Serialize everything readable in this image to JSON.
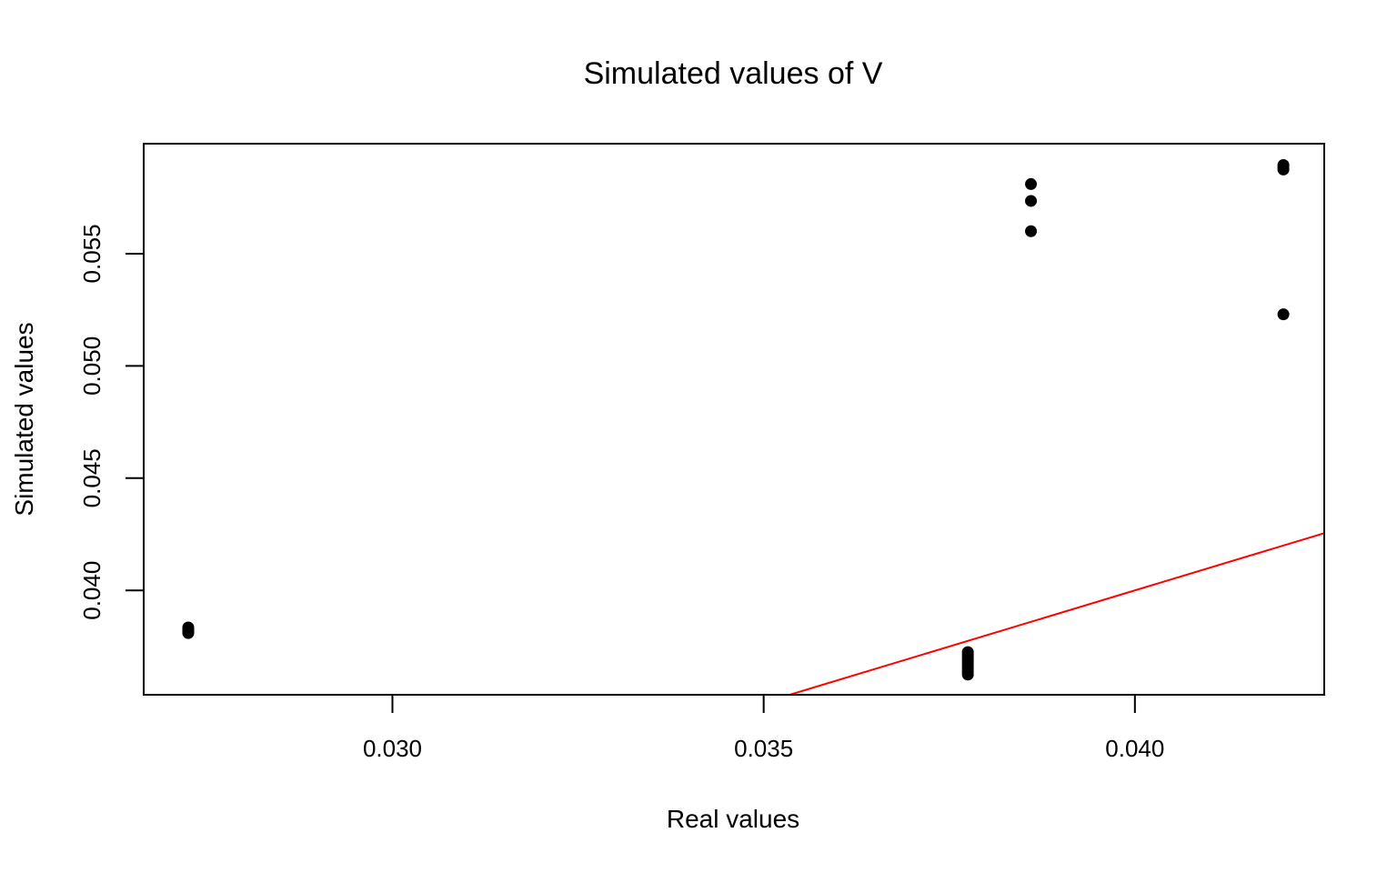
{
  "chart_data": {
    "type": "scatter",
    "title": "Simulated values of V",
    "xlabel": "Real values",
    "ylabel": "Simulated values",
    "xlim": [
      0.02665,
      0.04255
    ],
    "ylim": [
      0.03535,
      0.0599
    ],
    "xticks": [
      {
        "value": 0.03,
        "label": "0.030"
      },
      {
        "value": 0.035,
        "label": "0.035"
      },
      {
        "value": 0.04,
        "label": "0.040"
      }
    ],
    "yticks": [
      {
        "value": 0.04,
        "label": "0.040"
      },
      {
        "value": 0.045,
        "label": "0.045"
      },
      {
        "value": 0.05,
        "label": "0.050"
      },
      {
        "value": 0.055,
        "label": "0.055"
      }
    ],
    "grid": false,
    "legend": "none",
    "point_color": "#000000",
    "line_color": "#ff0000",
    "reference_line": {
      "type": "y=x",
      "intercept": 0,
      "slope": 1
    },
    "points": [
      {
        "x": 0.02725,
        "y": 0.0381
      },
      {
        "x": 0.02725,
        "y": 0.03815
      },
      {
        "x": 0.02725,
        "y": 0.0382
      },
      {
        "x": 0.02725,
        "y": 0.03825
      },
      {
        "x": 0.02725,
        "y": 0.0383
      },
      {
        "x": 0.02725,
        "y": 0.03835
      },
      {
        "x": 0.03775,
        "y": 0.03625
      },
      {
        "x": 0.03775,
        "y": 0.03635
      },
      {
        "x": 0.03775,
        "y": 0.03645
      },
      {
        "x": 0.03775,
        "y": 0.03655
      },
      {
        "x": 0.03775,
        "y": 0.03665
      },
      {
        "x": 0.03775,
        "y": 0.03675
      },
      {
        "x": 0.03775,
        "y": 0.03685
      },
      {
        "x": 0.03775,
        "y": 0.03695
      },
      {
        "x": 0.03775,
        "y": 0.03705
      },
      {
        "x": 0.03775,
        "y": 0.03715
      },
      {
        "x": 0.03775,
        "y": 0.03725
      },
      {
        "x": 0.0386,
        "y": 0.0581
      },
      {
        "x": 0.0386,
        "y": 0.05735
      },
      {
        "x": 0.0386,
        "y": 0.056
      },
      {
        "x": 0.042,
        "y": 0.05895
      },
      {
        "x": 0.042,
        "y": 0.05885
      },
      {
        "x": 0.042,
        "y": 0.05875
      },
      {
        "x": 0.042,
        "y": 0.0523
      }
    ]
  }
}
